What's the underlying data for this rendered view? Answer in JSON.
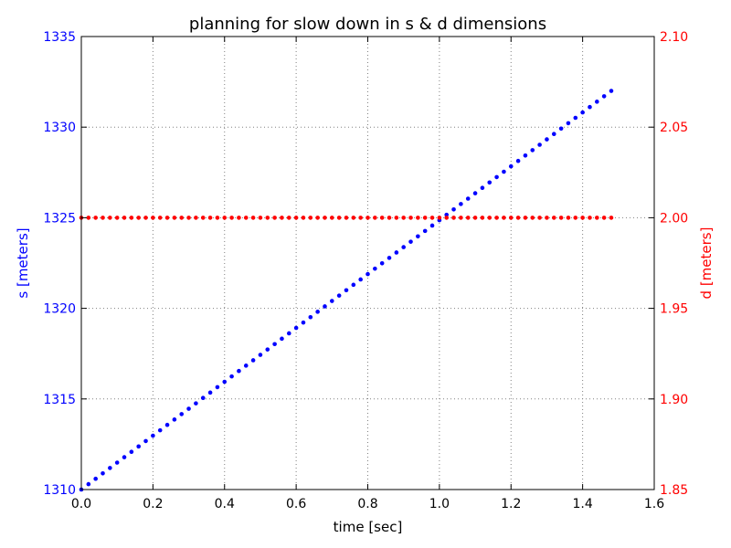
{
  "chart_data": {
    "type": "scatter",
    "title": "planning for slow down in s & d dimensions",
    "xlabel": "time [sec]",
    "ylabel_left": "s [meters]",
    "ylabel_right": "d [meters]",
    "xlim": [
      0.0,
      1.6
    ],
    "ylim_left": [
      1310,
      1335
    ],
    "ylim_right": [
      1.85,
      2.1
    ],
    "xticks": [
      "0.0",
      "0.2",
      "0.4",
      "0.6",
      "0.8",
      "1.0",
      "1.2",
      "1.4",
      "1.6"
    ],
    "yticks_left": [
      "1310",
      "1315",
      "1320",
      "1325",
      "1330",
      "1335"
    ],
    "yticks_right": [
      "1.85",
      "1.90",
      "1.95",
      "2.00",
      "2.05",
      "2.10"
    ],
    "grid": true,
    "colors": {
      "s": "#0000ff",
      "d": "#ff0000",
      "axis": "#000000",
      "grid": "#808080"
    },
    "series": [
      {
        "axis": "left",
        "x_start": 0.0,
        "x_end": 1.48,
        "x_step": 0.02,
        "y_start": 1310.0,
        "y_end": 1332.0,
        "marker": "dot",
        "color": "#0000ff"
      },
      {
        "axis": "right",
        "x_start": 0.0,
        "x_end": 1.48,
        "x_step": 0.02,
        "y_value": 2.0,
        "marker": "dot",
        "color": "#ff0000"
      }
    ]
  }
}
